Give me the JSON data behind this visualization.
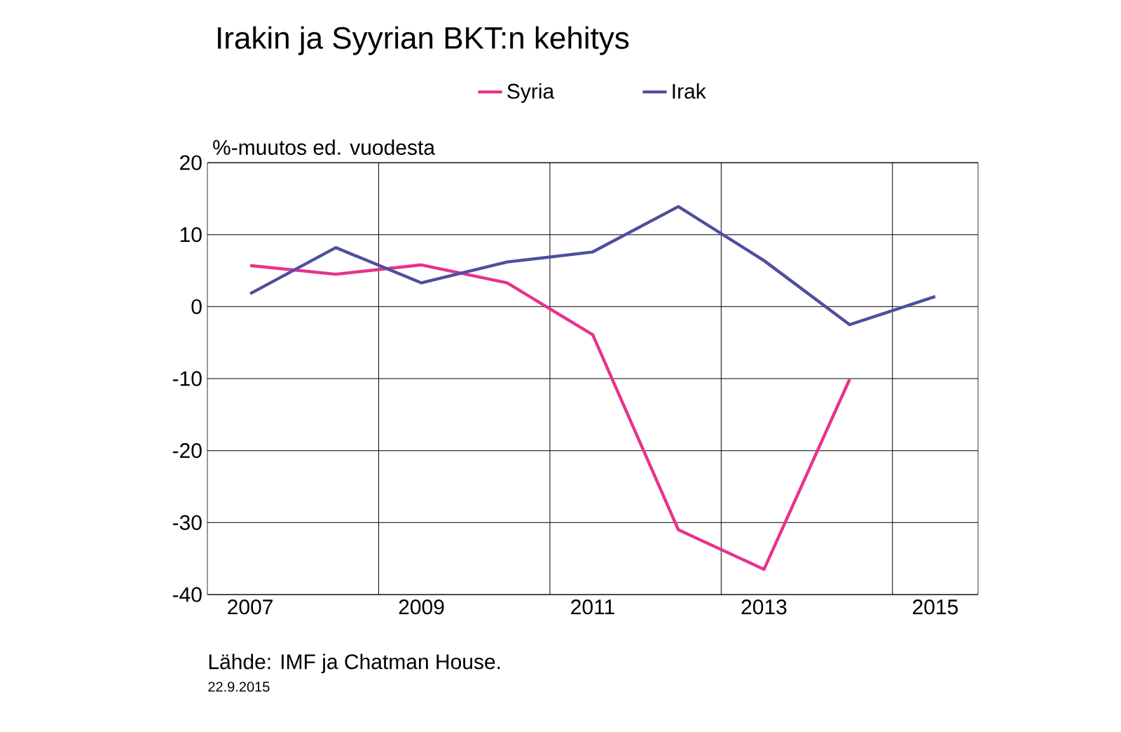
{
  "chart_data": {
    "type": "line",
    "title": "Irakin ja Syyrian BKT:n kehitys",
    "ylabel": "%-muutos ed. vuodesta",
    "categories": [
      "2007",
      null,
      "2009",
      null,
      "2011",
      null,
      "2013",
      null,
      "2015"
    ],
    "series": [
      {
        "name": "Syria",
        "color": "#e6338c",
        "values": [
          5.7,
          4.5,
          5.8,
          3.3,
          -3.9,
          -31,
          -36.5,
          -10.1,
          null
        ]
      },
      {
        "name": "Irak",
        "color": "#4f4f9f",
        "values": [
          1.8,
          8.2,
          3.3,
          6.2,
          7.6,
          13.9,
          6.4,
          -2.5,
          1.4
        ]
      }
    ],
    "ylim": [
      -40,
      20
    ],
    "yticks": [
      -40,
      -30,
      -20,
      -10,
      0,
      10,
      20
    ],
    "grid": true,
    "legend": "top",
    "marker": "none",
    "line_style": "solid",
    "annotations": [
      "Lähde: IMF ja Chatman House.",
      "22.9.2015"
    ]
  }
}
